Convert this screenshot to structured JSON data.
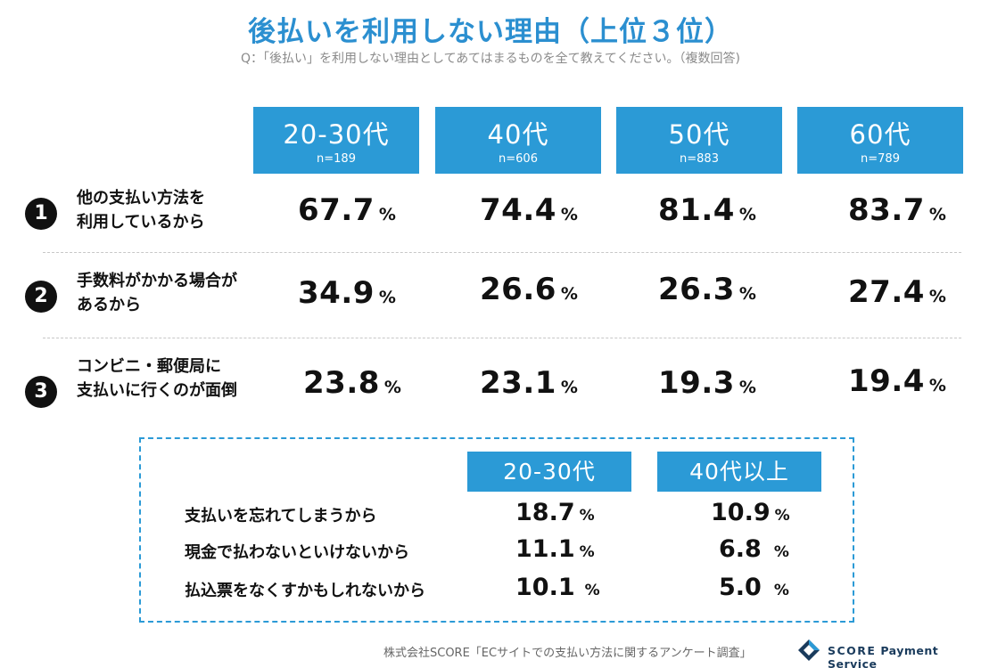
{
  "header": {
    "title": "後払いを利用しない理由（上位３位）",
    "subtitle": "Q：「後払い」を利用しない理由としてあてはまるものを全て教えてください。（複数回答)"
  },
  "chart_data": [
    {
      "type": "table",
      "title": "後払いを利用しない理由（上位３位）",
      "unit": "%",
      "columns": [
        {
          "label": "20-30代",
          "n": "n=189"
        },
        {
          "label": "40代",
          "n": "n=606"
        },
        {
          "label": "50代",
          "n": "n=883"
        },
        {
          "label": "60代",
          "n": "n=789"
        }
      ],
      "rows": [
        {
          "rank": "1",
          "label_line1": "他の支払い方法を",
          "label_line2": "利用しているから",
          "values": [
            "67.7",
            "74.4",
            "81.4",
            "83.7"
          ]
        },
        {
          "rank": "2",
          "label_line1": "手数料がかかる場合が",
          "label_line2": "あるから",
          "values": [
            "34.9",
            "26.6",
            "26.3",
            "27.4"
          ]
        },
        {
          "rank": "3",
          "label_line1": "コンビニ・郵便局に",
          "label_line2": "支払いに行くのが面倒",
          "values": [
            "23.8",
            "23.1",
            "19.3",
            "19.4"
          ]
        }
      ]
    },
    {
      "type": "table",
      "unit": "%",
      "columns": [
        "20-30代",
        "40代以上"
      ],
      "rows": [
        {
          "label": "支払いを忘れてしまうから",
          "values": [
            "18.7",
            "10.9"
          ]
        },
        {
          "label": "現金で払わないといけないから",
          "values": [
            "11.1",
            "6.8"
          ]
        },
        {
          "label": "払込票をなくすかもしれないから",
          "values": [
            "10.1",
            "5.0"
          ]
        }
      ]
    }
  ],
  "pct_symbol": "%",
  "footer": {
    "source": "株式会社SCORE「ECサイトでの支払い方法に関するアンケート調査」",
    "brand_name": "SCORE",
    "brand_tagline": "Payment Service"
  },
  "colors": {
    "accent": "#2b9ad6",
    "title": "#2b8fd0",
    "text": "#111111"
  }
}
